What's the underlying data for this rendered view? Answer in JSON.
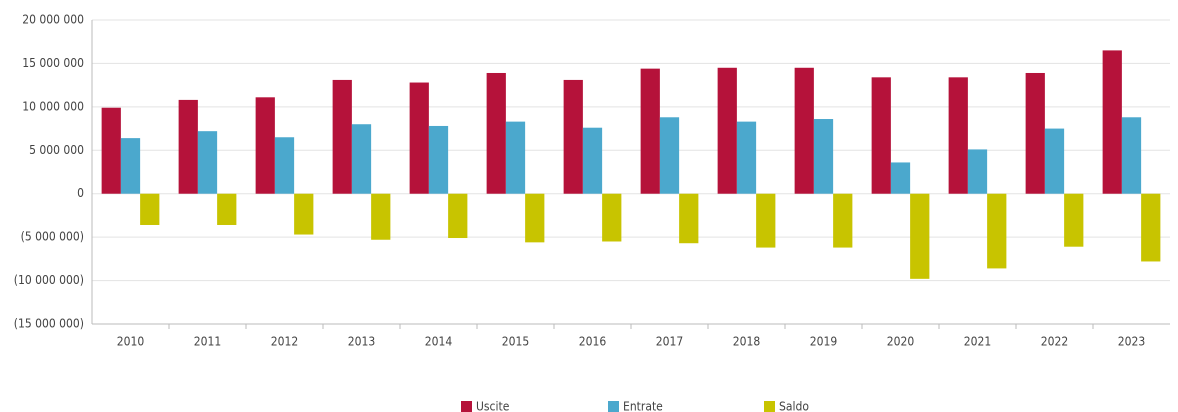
{
  "chart_data": {
    "type": "bar",
    "categories": [
      "2010",
      "2011",
      "2012",
      "2013",
      "2014",
      "2015",
      "2016",
      "2017",
      "2018",
      "2019",
      "2020",
      "2021",
      "2022",
      "2023"
    ],
    "series": [
      {
        "name": "Uscite",
        "color": "#b5123a",
        "values": [
          9900000,
          10800000,
          11100000,
          13100000,
          12800000,
          13900000,
          13100000,
          14400000,
          14500000,
          14500000,
          13400000,
          13400000,
          13900000,
          16500000
        ]
      },
      {
        "name": "Entrate",
        "color": "#4ba8cd",
        "values": [
          6400000,
          7200000,
          6500000,
          8000000,
          7800000,
          8300000,
          7600000,
          8800000,
          8300000,
          8600000,
          3600000,
          5100000,
          7500000,
          8800000
        ]
      },
      {
        "name": "Saldo",
        "color": "#c8c400",
        "values": [
          -3600000,
          -3600000,
          -4700000,
          -5300000,
          -5100000,
          -5600000,
          -5500000,
          -5700000,
          -6200000,
          -6200000,
          -9800000,
          -8600000,
          -6100000,
          -7800000
        ]
      }
    ],
    "ylim": [
      -15000000,
      20000000
    ],
    "yticks": [
      {
        "value": -15000000,
        "label": "(15 000 000)"
      },
      {
        "value": -10000000,
        "label": "(10 000 000)"
      },
      {
        "value": -5000000,
        "label": "(5 000 000)"
      },
      0,
      {
        "value": 5000000,
        "label": "5 000 000"
      },
      {
        "value": 10000000,
        "label": "10 000 000"
      },
      {
        "value": 15000000,
        "label": "15 000 000"
      },
      {
        "value": 20000000,
        "label": "20 000 000"
      }
    ],
    "grid": true,
    "legend": "bottom"
  }
}
